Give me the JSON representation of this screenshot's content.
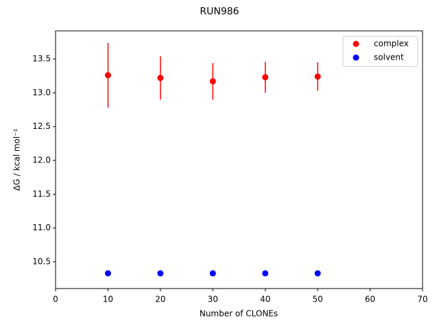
{
  "chart_data": {
    "type": "scatter",
    "title": "RUN986",
    "xlabel": "Number of CLONEs",
    "ylabel": "ΔG / kcal mol⁻¹",
    "x": [
      10,
      20,
      30,
      40,
      50
    ],
    "series": [
      {
        "name": "complex",
        "color": "#ff0000",
        "values": [
          13.26,
          13.22,
          13.17,
          13.23,
          13.24
        ],
        "errors": [
          0.48,
          0.32,
          0.27,
          0.23,
          0.21
        ]
      },
      {
        "name": "solvent",
        "color": "#0000ff",
        "values": [
          10.33,
          10.33,
          10.33,
          10.33,
          10.33
        ],
        "errors": [
          0.01,
          0.01,
          0.01,
          0.01,
          0.01
        ]
      }
    ],
    "xlim": [
      0,
      70
    ],
    "xticks": [
      0,
      10,
      20,
      30,
      40,
      50,
      60,
      70
    ],
    "ylim": [
      10.105,
      13.916
    ],
    "yticks": [
      10.5,
      {
        "value": 11,
        "label": "11.0"
      },
      11.5,
      {
        "value": 12,
        "label": "12.0"
      },
      12.5,
      {
        "value": 13,
        "label": "13.0"
      },
      13.5
    ],
    "grid": false,
    "legend": "upper right"
  }
}
